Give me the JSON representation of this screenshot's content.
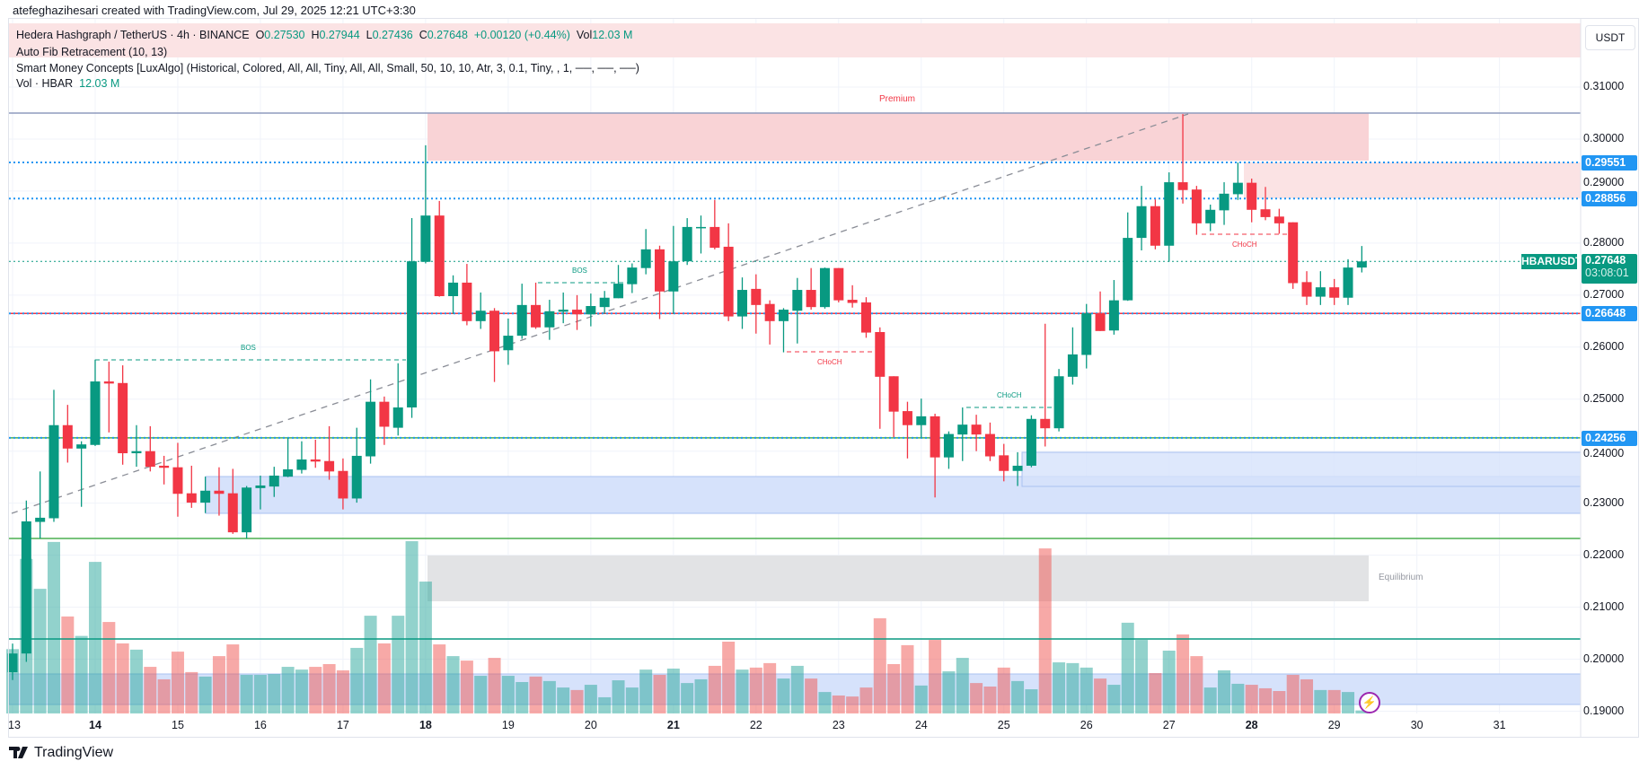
{
  "header": {
    "attribution": "atefeghazihesari created with TradingView.com, Jul 29, 2025 12:21 UTC+3:30"
  },
  "legend": {
    "symbol": "Hedera Hashgraph / TetherUS · 4h · BINANCE",
    "open_label": "O",
    "open": "0.27530",
    "high_label": "H",
    "high": "0.27944",
    "low_label": "L",
    "low": "0.27436",
    "close_label": "C",
    "close": "0.27648",
    "change": "+0.00120 (+0.44%)",
    "vol_label": "Vol",
    "vol": "12.03 M",
    "indicator_fib": "Auto Fib Retracement (10, 13)",
    "indicator_smc": "Smart Money Concepts [LuxAlgo] (Historical, Colored, All, All, Tiny, All, All, Small, 50, 10, 10, Atr, 3, 0.1, Tiny, , 1, ──, ──, ──)",
    "volume_name": "Vol · HBAR",
    "volume_value": "12.03 M"
  },
  "currency_button": "USDT",
  "price_axis": {
    "ticks": [
      "0.31000",
      "0.30000",
      "0.29000",
      "0.28000",
      "0.27000",
      "0.26000",
      "0.25000",
      "0.24000",
      "0.23000",
      "0.22000",
      "0.21000",
      "0.20000",
      "0.19000"
    ],
    "tick_values": [
      0.31,
      0.3,
      0.29,
      0.28,
      0.27,
      0.26,
      0.25,
      0.24,
      0.23,
      0.22,
      0.21,
      0.2,
      0.19
    ],
    "levels": [
      {
        "label": "0.29551",
        "value": 0.29551
      },
      {
        "label": "0.28856",
        "value": 0.28856
      },
      {
        "label": "0.26648",
        "value": 0.26648
      },
      {
        "label": "0.24256",
        "value": 0.24256
      }
    ],
    "current": {
      "symbol": "HBARUSDT",
      "price": "0.27648",
      "value": 0.27648,
      "countdown": "03:08:01"
    }
  },
  "time_axis": {
    "days": [
      {
        "label": "13",
        "i": 0
      },
      {
        "label": "14",
        "i": 6,
        "emphasis": true
      },
      {
        "label": "15",
        "i": 12
      },
      {
        "label": "16",
        "i": 18
      },
      {
        "label": "17",
        "i": 24
      },
      {
        "label": "18",
        "i": 30,
        "emphasis": true
      },
      {
        "label": "19",
        "i": 36
      },
      {
        "label": "20",
        "i": 42
      },
      {
        "label": "21",
        "i": 48,
        "emphasis": true
      },
      {
        "label": "22",
        "i": 54
      },
      {
        "label": "23",
        "i": 60
      },
      {
        "label": "24",
        "i": 66
      },
      {
        "label": "25",
        "i": 72
      },
      {
        "label": "26",
        "i": 78
      },
      {
        "label": "27",
        "i": 84
      },
      {
        "label": "28",
        "i": 90,
        "emphasis": true
      },
      {
        "label": "29",
        "i": 96
      },
      {
        "label": "30",
        "i": 102
      },
      {
        "label": "31",
        "i": 108
      }
    ]
  },
  "annotations": {
    "premium": "Premium",
    "equilibrium": "Equilibrium",
    "bos_1": "BOS",
    "bos_2": "BOS",
    "choch_1": "CHoCH",
    "choch_2": "CHoCH",
    "choch_3": "CHoCH"
  },
  "colors": {
    "up": "#089981",
    "down": "#f23645",
    "level": "#2196f3",
    "premium": "#f7c9cd",
    "discount": "#bcd0f7",
    "equilibrium": "#d1d4dc"
  },
  "footer": {
    "brand": "TradingView"
  },
  "chart_data": {
    "type": "candlestick",
    "title": "Hedera Hashgraph / TetherUS · 4h · BINANCE",
    "ylim": [
      0.188,
      0.3115
    ],
    "columns": [
      "open",
      "high",
      "low",
      "close",
      "volume_M"
    ],
    "candles": [
      [
        0.1975,
        0.203,
        0.196,
        0.2011,
        258
      ],
      [
        0.2011,
        0.2305,
        0.1995,
        0.2265,
        620
      ],
      [
        0.2264,
        0.2361,
        0.2232,
        0.2272,
        500
      ],
      [
        0.2271,
        0.2518,
        0.2264,
        0.245,
        688
      ],
      [
        0.245,
        0.2489,
        0.2378,
        0.2405,
        389
      ],
      [
        0.2405,
        0.2419,
        0.2293,
        0.2413,
        311
      ],
      [
        0.2412,
        0.2576,
        0.241,
        0.2534,
        608
      ],
      [
        0.2534,
        0.2572,
        0.2436,
        0.253,
        367
      ],
      [
        0.2531,
        0.2565,
        0.2374,
        0.2396,
        281
      ],
      [
        0.2396,
        0.245,
        0.237,
        0.24,
        256
      ],
      [
        0.24,
        0.2448,
        0.2361,
        0.237,
        187
      ],
      [
        0.2372,
        0.2391,
        0.2336,
        0.2368,
        137
      ],
      [
        0.2369,
        0.2416,
        0.2274,
        0.2318,
        248
      ],
      [
        0.2319,
        0.2372,
        0.2291,
        0.2301,
        166
      ],
      [
        0.2301,
        0.2351,
        0.2281,
        0.2324,
        148
      ],
      [
        0.2324,
        0.2369,
        0.2276,
        0.2318,
        230
      ],
      [
        0.2319,
        0.2366,
        0.2241,
        0.2244,
        277
      ],
      [
        0.2244,
        0.2333,
        0.2232,
        0.233,
        155
      ],
      [
        0.2329,
        0.2353,
        0.2288,
        0.2334,
        155
      ],
      [
        0.2332,
        0.237,
        0.2312,
        0.2353,
        158
      ],
      [
        0.2351,
        0.2425,
        0.235,
        0.2365,
        187
      ],
      [
        0.2364,
        0.2419,
        0.2357,
        0.2384,
        176
      ],
      [
        0.2384,
        0.2422,
        0.2368,
        0.238,
        187
      ],
      [
        0.2381,
        0.2448,
        0.2345,
        0.2361,
        198
      ],
      [
        0.2362,
        0.2386,
        0.2288,
        0.2309,
        173
      ],
      [
        0.2309,
        0.2445,
        0.2301,
        0.2391,
        263
      ],
      [
        0.239,
        0.2538,
        0.2376,
        0.2495,
        392
      ],
      [
        0.2495,
        0.2505,
        0.2412,
        0.2447,
        281
      ],
      [
        0.2445,
        0.2569,
        0.243,
        0.2484,
        392
      ],
      [
        0.2484,
        0.2848,
        0.2464,
        0.2765,
        691
      ],
      [
        0.2764,
        0.2988,
        0.2761,
        0.2853,
        529
      ],
      [
        0.2853,
        0.2881,
        0.2697,
        0.2698,
        277
      ],
      [
        0.2698,
        0.2738,
        0.2664,
        0.2724,
        230
      ],
      [
        0.2724,
        0.276,
        0.2642,
        0.265,
        212
      ],
      [
        0.265,
        0.2705,
        0.2635,
        0.267,
        151
      ],
      [
        0.267,
        0.2675,
        0.2533,
        0.2592,
        223
      ],
      [
        0.2594,
        0.2655,
        0.2566,
        0.2622,
        151
      ],
      [
        0.2622,
        0.2722,
        0.2616,
        0.2681,
        126
      ],
      [
        0.2681,
        0.2724,
        0.2635,
        0.2638,
        148
      ],
      [
        0.2638,
        0.2691,
        0.2614,
        0.2669,
        130
      ],
      [
        0.2668,
        0.2705,
        0.2646,
        0.2672,
        104
      ],
      [
        0.2672,
        0.27,
        0.2633,
        0.2663,
        94
      ],
      [
        0.2663,
        0.2703,
        0.264,
        0.2679,
        115
      ],
      [
        0.2677,
        0.2708,
        0.2664,
        0.2695,
        65
      ],
      [
        0.2694,
        0.2758,
        0.2694,
        0.2722,
        133
      ],
      [
        0.2721,
        0.2761,
        0.2704,
        0.2753,
        104
      ],
      [
        0.2752,
        0.2827,
        0.274,
        0.2788,
        176
      ],
      [
        0.2788,
        0.2795,
        0.2654,
        0.2707,
        155
      ],
      [
        0.2707,
        0.2833,
        0.2664,
        0.2765,
        180
      ],
      [
        0.2765,
        0.2848,
        0.2758,
        0.2831,
        122
      ],
      [
        0.283,
        0.2853,
        0.278,
        0.2831,
        137
      ],
      [
        0.2831,
        0.2883,
        0.2788,
        0.2791,
        191
      ],
      [
        0.2793,
        0.2838,
        0.265,
        0.2659,
        288
      ],
      [
        0.2659,
        0.2734,
        0.2635,
        0.271,
        176
      ],
      [
        0.2712,
        0.274,
        0.2626,
        0.2681,
        184
      ],
      [
        0.2683,
        0.269,
        0.2605,
        0.265,
        202
      ],
      [
        0.265,
        0.2675,
        0.259,
        0.2672,
        140
      ],
      [
        0.267,
        0.2733,
        0.2607,
        0.271,
        191
      ],
      [
        0.271,
        0.2752,
        0.2672,
        0.2677,
        140
      ],
      [
        0.2677,
        0.2753,
        0.2674,
        0.2752,
        86
      ],
      [
        0.2752,
        0.2752,
        0.2686,
        0.269,
        72
      ],
      [
        0.2691,
        0.2719,
        0.2676,
        0.2685,
        68
      ],
      [
        0.2686,
        0.2696,
        0.2618,
        0.2628,
        104
      ],
      [
        0.2629,
        0.2638,
        0.2443,
        0.2543,
        382
      ],
      [
        0.2544,
        0.2544,
        0.2427,
        0.2476,
        198
      ],
      [
        0.2477,
        0.2495,
        0.2386,
        0.245,
        274
      ],
      [
        0.245,
        0.2501,
        0.2426,
        0.2467,
        112
      ],
      [
        0.2467,
        0.2472,
        0.2311,
        0.2388,
        295
      ],
      [
        0.2388,
        0.2438,
        0.2366,
        0.2433,
        169
      ],
      [
        0.2432,
        0.2484,
        0.2381,
        0.2451,
        223
      ],
      [
        0.2451,
        0.247,
        0.24,
        0.2432,
        122
      ],
      [
        0.2433,
        0.2455,
        0.2381,
        0.239,
        108
      ],
      [
        0.2392,
        0.2414,
        0.2342,
        0.2362,
        184
      ],
      [
        0.2362,
        0.2398,
        0.2333,
        0.2372,
        130
      ],
      [
        0.2372,
        0.2469,
        0.2369,
        0.2462,
        97
      ],
      [
        0.2462,
        0.2645,
        0.2409,
        0.2444,
        662
      ],
      [
        0.2444,
        0.2558,
        0.2438,
        0.2544,
        205
      ],
      [
        0.2543,
        0.2638,
        0.2528,
        0.2586,
        202
      ],
      [
        0.2585,
        0.2683,
        0.2559,
        0.2665,
        184
      ],
      [
        0.2665,
        0.2707,
        0.2631,
        0.2631,
        140
      ],
      [
        0.2632,
        0.2729,
        0.2624,
        0.269,
        115
      ],
      [
        0.269,
        0.2859,
        0.2689,
        0.281,
        364
      ],
      [
        0.281,
        0.291,
        0.2786,
        0.2871,
        295
      ],
      [
        0.2871,
        0.2884,
        0.2788,
        0.2795,
        162
      ],
      [
        0.2795,
        0.2936,
        0.2764,
        0.2917,
        252
      ],
      [
        0.2917,
        0.3048,
        0.2876,
        0.2902,
        317
      ],
      [
        0.2903,
        0.291,
        0.2816,
        0.2838,
        230
      ],
      [
        0.2838,
        0.2874,
        0.2823,
        0.2864,
        104
      ],
      [
        0.2863,
        0.2917,
        0.2835,
        0.2895,
        173
      ],
      [
        0.2894,
        0.2955,
        0.2883,
        0.2916,
        119
      ],
      [
        0.2916,
        0.2924,
        0.284,
        0.2864,
        115
      ],
      [
        0.2865,
        0.2908,
        0.2844,
        0.285,
        101
      ],
      [
        0.2851,
        0.2866,
        0.2818,
        0.2838,
        90
      ],
      [
        0.284,
        0.284,
        0.2712,
        0.2723,
        155
      ],
      [
        0.2725,
        0.2746,
        0.2681,
        0.2697,
        137
      ],
      [
        0.2697,
        0.2746,
        0.2681,
        0.2715,
        94
      ],
      [
        0.2715,
        0.2731,
        0.2681,
        0.2695,
        94
      ],
      [
        0.2695,
        0.2769,
        0.2681,
        0.2753,
        86
      ],
      [
        0.2753,
        0.27944,
        0.27436,
        0.27648,
        12.03
      ]
    ],
    "fib_levels": [
      0.305,
      0.2232,
      0.2039
    ]
  }
}
